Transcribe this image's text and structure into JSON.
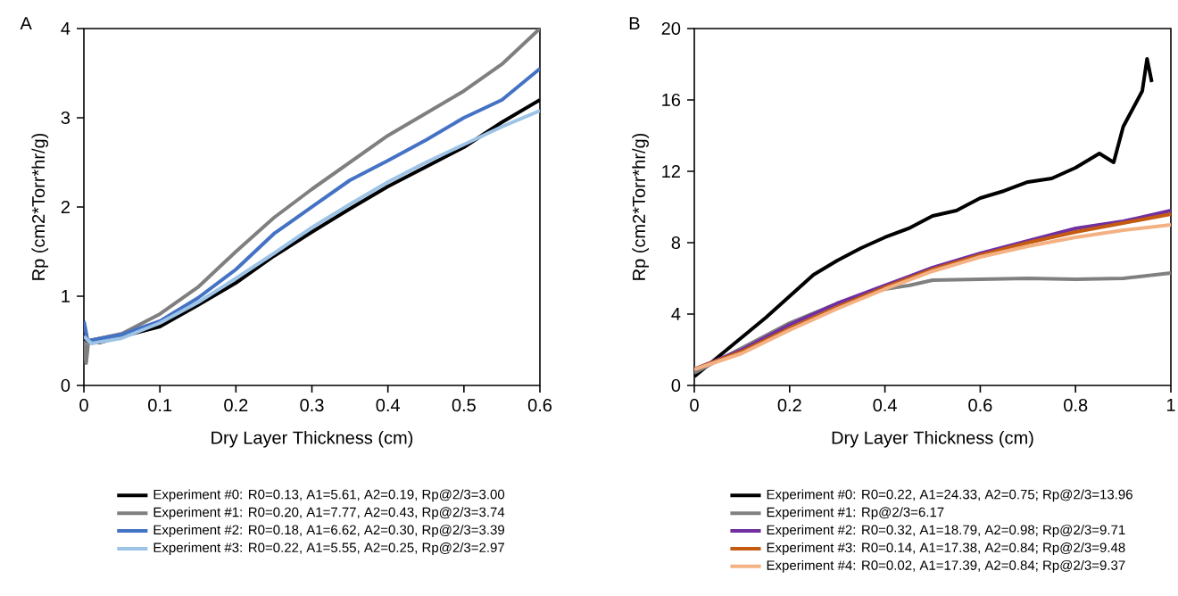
{
  "chart_data": [
    {
      "type": "line",
      "title": "A",
      "xlabel": "Dry Layer Thickness (cm)",
      "ylabel": "Rp (cm2*Torr*hr/g)",
      "xlim": [
        0,
        0.6
      ],
      "ylim": [
        0,
        4
      ],
      "xticks": [
        0,
        0.1,
        0.2,
        0.3,
        0.4,
        0.5,
        0.6
      ],
      "yticks": [
        0,
        1,
        2,
        3,
        4
      ],
      "grid": false,
      "legend": "bottom",
      "line_style": "solid",
      "series": [
        {
          "name": "Experiment #0: R0=0.13, A1=5.61, A2=0.19, Rp@2/3=3.00",
          "color": "#000000",
          "x": [
            0,
            0.02,
            0.05,
            0.1,
            0.15,
            0.2,
            0.25,
            0.3,
            0.35,
            0.4,
            0.45,
            0.5,
            0.55,
            0.6
          ],
          "values": [
            0.5,
            0.48,
            0.55,
            0.66,
            0.9,
            1.15,
            1.45,
            1.72,
            1.98,
            2.23,
            2.45,
            2.67,
            2.95,
            3.2
          ]
        },
        {
          "name": "Experiment #1: R0=0.20, A1=7.77, A2=0.43, Rp@2/3=3.74",
          "color": "#7f7f7f",
          "x": [
            0,
            0.003,
            0.006,
            0.05,
            0.1,
            0.15,
            0.2,
            0.25,
            0.3,
            0.35,
            0.4,
            0.45,
            0.5,
            0.55,
            0.6
          ],
          "values": [
            0.5,
            0.25,
            0.5,
            0.58,
            0.8,
            1.1,
            1.5,
            1.88,
            2.2,
            2.5,
            2.8,
            3.05,
            3.3,
            3.6,
            4.0
          ]
        },
        {
          "name": "Experiment #2: R0=0.18, A1=6.62, A2=0.30, Rp@2/3=3.39",
          "color": "#4472c4",
          "x": [
            0,
            0.005,
            0.05,
            0.1,
            0.15,
            0.2,
            0.25,
            0.3,
            0.35,
            0.4,
            0.45,
            0.5,
            0.55,
            0.6
          ],
          "values": [
            0.72,
            0.5,
            0.57,
            0.72,
            0.98,
            1.3,
            1.7,
            2.0,
            2.3,
            2.52,
            2.75,
            3.0,
            3.2,
            3.55
          ]
        },
        {
          "name": "Experiment #3: R0=0.22, A1=5.55, A2=0.25, Rp@2/3=2.97",
          "color": "#9dc3e6",
          "x": [
            0,
            0.01,
            0.05,
            0.1,
            0.15,
            0.2,
            0.25,
            0.3,
            0.35,
            0.4,
            0.45,
            0.5,
            0.55,
            0.6
          ],
          "values": [
            0.55,
            0.47,
            0.53,
            0.7,
            0.93,
            1.2,
            1.48,
            1.77,
            2.03,
            2.28,
            2.5,
            2.7,
            2.9,
            3.08
          ]
        }
      ]
    },
    {
      "type": "line",
      "title": "B",
      "xlabel": "Dry Layer Thickness (cm)",
      "ylabel": "Rp (cm2*Torr*hr/g)",
      "xlim": [
        0,
        1
      ],
      "ylim": [
        0,
        20
      ],
      "xticks": [
        0,
        0.2,
        0.4,
        0.6,
        0.8,
        1
      ],
      "yticks": [
        0,
        4,
        8,
        12,
        16,
        20
      ],
      "grid": false,
      "legend": "bottom",
      "line_style": "solid",
      "series": [
        {
          "name": "Experiment #0: R0=0.22, A1=24.33, A2=0.75; Rp@2/3=13.96",
          "color": "#000000",
          "x": [
            0,
            0.05,
            0.1,
            0.15,
            0.2,
            0.25,
            0.3,
            0.35,
            0.4,
            0.45,
            0.5,
            0.55,
            0.6,
            0.65,
            0.7,
            0.75,
            0.8,
            0.85,
            0.88,
            0.9,
            0.92,
            0.94,
            0.95,
            0.96
          ],
          "values": [
            0.5,
            1.6,
            2.7,
            3.8,
            5.0,
            6.2,
            7.0,
            7.7,
            8.3,
            8.8,
            9.5,
            9.8,
            10.5,
            10.9,
            11.4,
            11.6,
            12.2,
            13.0,
            12.5,
            14.5,
            15.5,
            16.5,
            18.3,
            17.0
          ]
        },
        {
          "name": "Experiment #1: Rp@2/3=6.17",
          "color": "#808080",
          "x": [
            0,
            0.1,
            0.2,
            0.3,
            0.4,
            0.45,
            0.5,
            0.6,
            0.7,
            0.8,
            0.9,
            1.0
          ],
          "values": [
            0.7,
            2.1,
            3.5,
            4.6,
            5.4,
            5.6,
            5.9,
            5.95,
            6.0,
            5.95,
            6.0,
            6.3
          ]
        },
        {
          "name": "Experiment #2: R0=0.32, A1=18.79, A2=0.98; Rp@2/3=9.71",
          "color": "#7030a0",
          "x": [
            0,
            0.1,
            0.2,
            0.3,
            0.4,
            0.5,
            0.6,
            0.7,
            0.8,
            0.9,
            1.0
          ],
          "values": [
            0.9,
            2.0,
            3.4,
            4.6,
            5.6,
            6.6,
            7.4,
            8.1,
            8.8,
            9.2,
            9.8
          ]
        },
        {
          "name": "Experiment #3: R0=0.14, A1=17.38, A2=0.84; Rp@2/3=9.48",
          "color": "#c55a11",
          "x": [
            0,
            0.1,
            0.2,
            0.3,
            0.4,
            0.5,
            0.6,
            0.7,
            0.8,
            0.9,
            1.0
          ],
          "values": [
            0.9,
            1.9,
            3.2,
            4.4,
            5.5,
            6.5,
            7.3,
            8.0,
            8.6,
            9.1,
            9.6
          ]
        },
        {
          "name": "Experiment #4: R0=0.02, A1=17.39, A2=0.84; Rp@2/3=9.37",
          "color": "#f4b183",
          "x": [
            0,
            0.1,
            0.2,
            0.3,
            0.4,
            0.5,
            0.6,
            0.7,
            0.8,
            0.9,
            1.0
          ],
          "values": [
            0.9,
            1.8,
            3.1,
            4.3,
            5.4,
            6.4,
            7.2,
            7.8,
            8.3,
            8.7,
            9.0
          ]
        }
      ]
    }
  ]
}
